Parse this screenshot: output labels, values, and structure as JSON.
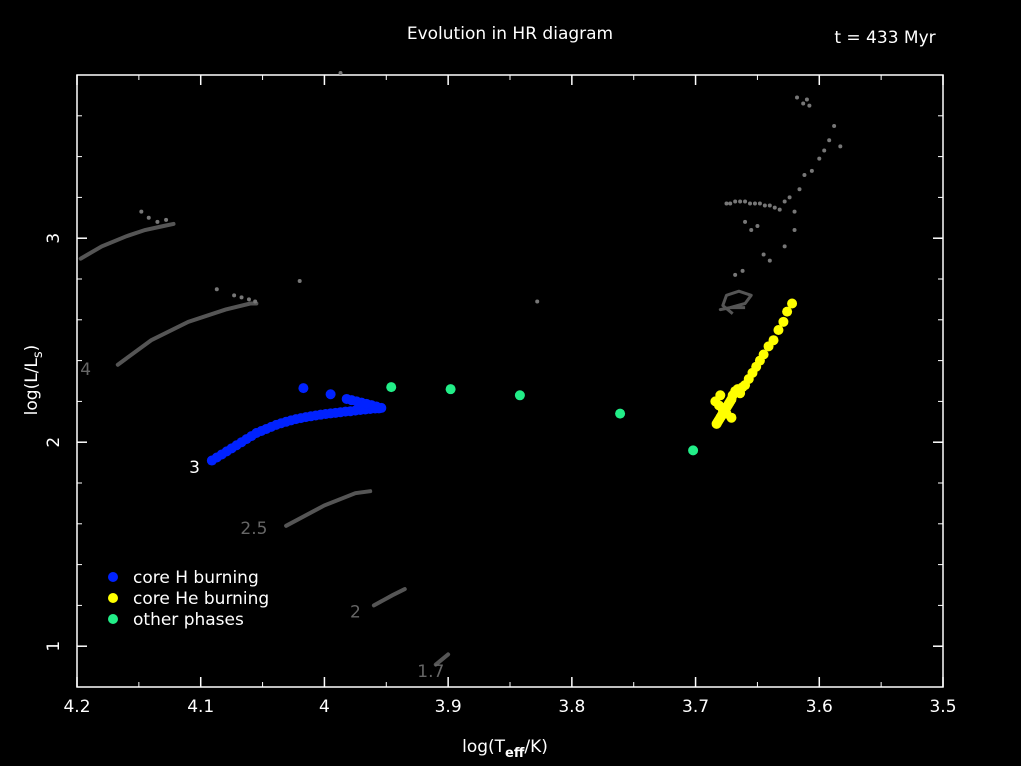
{
  "chart_data": {
    "type": "scatter",
    "title": "Evolution in HR diagram",
    "time_label": "t = 433 Myr",
    "xlabel": {
      "base": "log(T",
      "sub": "eff",
      "tail": "/K)"
    },
    "ylabel": {
      "base": "log(L/L",
      "sub": "s",
      "tail": ")"
    },
    "xlim": [
      4.2,
      3.5
    ],
    "ylim": [
      0.8,
      3.8
    ],
    "x_ticks": [
      4.2,
      4.1,
      4.0,
      3.9,
      3.8,
      3.7,
      3.6,
      3.5
    ],
    "x_tick_labels": [
      "4.2",
      "4.1",
      "4",
      "3.9",
      "3.8",
      "3.7",
      "3.6",
      "3.5"
    ],
    "y_ticks": [
      1,
      2,
      3
    ],
    "y_tick_labels": [
      "1",
      "2",
      "3"
    ],
    "grid": false,
    "legend_position": "bottom-left",
    "colors": {
      "background": "#000000",
      "axis": "#ffffff",
      "core_h": "#0022ff",
      "core_he": "#ffff00",
      "other": "#22ee88",
      "track": "#555555",
      "track_label": "#666666"
    },
    "legend": [
      {
        "label": "core H burning",
        "color_key": "core_h"
      },
      {
        "label": "core He burning",
        "color_key": "core_he"
      },
      {
        "label": "other phases",
        "color_key": "other"
      }
    ],
    "tracks": [
      {
        "mass": "4",
        "x": [
          4.197,
          4.18,
          4.16,
          4.145,
          4.13,
          4.122
        ],
        "y": [
          2.9,
          2.96,
          3.01,
          3.04,
          3.06,
          3.07
        ]
      },
      {
        "mass": "",
        "x": [
          4.167,
          4.14,
          4.11,
          4.08,
          4.06,
          4.055
        ],
        "y": [
          2.38,
          2.5,
          2.59,
          2.65,
          2.68,
          2.68
        ]
      },
      {
        "mass": "2.5",
        "x": [
          4.031,
          4.0,
          3.975,
          3.963
        ],
        "y": [
          1.59,
          1.69,
          1.75,
          1.76
        ]
      },
      {
        "mass": "2",
        "x": [
          3.96,
          3.945,
          3.935
        ],
        "y": [
          1.2,
          1.25,
          1.28
        ]
      },
      {
        "mass": "1.7",
        "x": [
          3.91,
          3.9
        ],
        "y": [
          0.91,
          0.96
        ]
      }
    ],
    "track_dots": {
      "x": [
        4.148,
        4.142,
        4.135,
        4.128,
        4.087,
        4.073,
        4.067,
        4.061,
        4.056,
        4.02,
        3.987,
        3.828,
        3.675,
        3.672,
        3.668,
        3.664,
        3.66,
        3.656,
        3.652,
        3.648,
        3.644,
        3.64,
        3.636,
        3.632,
        3.628,
        3.624,
        3.62,
        3.616,
        3.612,
        3.606,
        3.6,
        3.596,
        3.592,
        3.588,
        3.583,
        3.608,
        3.61,
        3.62,
        3.628,
        3.65,
        3.655,
        3.66,
        3.645,
        3.64,
        3.613,
        3.618,
        3.662,
        3.668
      ],
      "y": [
        3.13,
        3.1,
        3.08,
        3.09,
        2.75,
        2.72,
        2.71,
        2.7,
        2.69,
        2.79,
        3.81,
        2.69,
        3.17,
        3.17,
        3.18,
        3.18,
        3.18,
        3.17,
        3.17,
        3.17,
        3.16,
        3.16,
        3.15,
        3.14,
        3.18,
        3.2,
        3.13,
        3.24,
        3.31,
        3.33,
        3.39,
        3.43,
        3.48,
        3.55,
        3.45,
        3.65,
        3.68,
        3.04,
        2.96,
        3.06,
        3.04,
        3.08,
        2.92,
        2.89,
        3.66,
        3.69,
        2.84,
        2.82
      ]
    },
    "loop_track": {
      "x": [
        3.67,
        3.678,
        3.675,
        3.665,
        3.655,
        3.66,
        3.672,
        3.68,
        3.672,
        3.66
      ],
      "y": [
        2.63,
        2.67,
        2.72,
        2.74,
        2.72,
        2.68,
        2.66,
        2.65,
        2.66,
        2.66
      ]
    },
    "track_label_positions": [
      {
        "label": "4",
        "x": 4.193,
        "y": 2.33
      },
      {
        "label": "2.5",
        "x": 4.057,
        "y": 1.55
      },
      {
        "label": "2",
        "x": 3.975,
        "y": 1.14
      },
      {
        "label": "1.7",
        "x": 3.914,
        "y": 0.85
      }
    ],
    "isochrone_label": {
      "label": "3",
      "x": 4.105,
      "y": 1.85
    },
    "series": [
      {
        "name": "core H burning",
        "color_key": "core_h",
        "x": [
          4.091,
          4.087,
          4.083,
          4.079,
          4.075,
          4.071,
          4.067,
          4.063,
          4.059,
          4.055,
          4.051,
          4.047,
          4.043,
          4.039,
          4.035,
          4.031,
          4.027,
          4.023,
          4.019,
          4.015,
          4.011,
          4.007,
          4.003,
          3.999,
          3.995,
          3.991,
          3.987,
          3.983,
          3.979,
          3.975,
          3.971,
          3.967,
          3.963,
          3.959,
          3.956,
          3.954,
          3.958,
          3.962,
          3.966,
          3.97,
          3.974,
          3.978,
          3.982,
          4.017,
          3.995
        ],
        "y": [
          1.91,
          1.925,
          1.94,
          1.955,
          1.97,
          1.985,
          2.0,
          2.015,
          2.03,
          2.045,
          2.055,
          2.065,
          2.075,
          2.085,
          2.093,
          2.1,
          2.107,
          2.113,
          2.118,
          2.123,
          2.127,
          2.131,
          2.135,
          2.138,
          2.141,
          2.144,
          2.147,
          2.15,
          2.152,
          2.155,
          2.158,
          2.16,
          2.163,
          2.165,
          2.166,
          2.168,
          2.175,
          2.182,
          2.188,
          2.194,
          2.2,
          2.206,
          2.212,
          2.265,
          2.235
        ]
      },
      {
        "name": "core He burning",
        "color_key": "core_he",
        "x": [
          3.683,
          3.682,
          3.681,
          3.68,
          3.679,
          3.678,
          3.677,
          3.676,
          3.675,
          3.674,
          3.673,
          3.672,
          3.671,
          3.67,
          3.668,
          3.666,
          3.664,
          3.662,
          3.66,
          3.657,
          3.654,
          3.651,
          3.648,
          3.645,
          3.641,
          3.637,
          3.633,
          3.629,
          3.626,
          3.622,
          3.671,
          3.675,
          3.678,
          3.681,
          3.684,
          3.68
        ],
        "y": [
          2.09,
          2.1,
          2.11,
          2.12,
          2.13,
          2.14,
          2.15,
          2.16,
          2.17,
          2.18,
          2.19,
          2.2,
          2.21,
          2.23,
          2.25,
          2.26,
          2.24,
          2.27,
          2.28,
          2.31,
          2.34,
          2.37,
          2.4,
          2.43,
          2.47,
          2.5,
          2.55,
          2.59,
          2.64,
          2.68,
          2.12,
          2.14,
          2.16,
          2.18,
          2.2,
          2.23
        ]
      },
      {
        "name": "other phases",
        "color_key": "other",
        "x": [
          3.946,
          3.898,
          3.842,
          3.761,
          3.702
        ],
        "y": [
          2.27,
          2.26,
          2.23,
          2.14,
          1.96
        ]
      }
    ]
  }
}
